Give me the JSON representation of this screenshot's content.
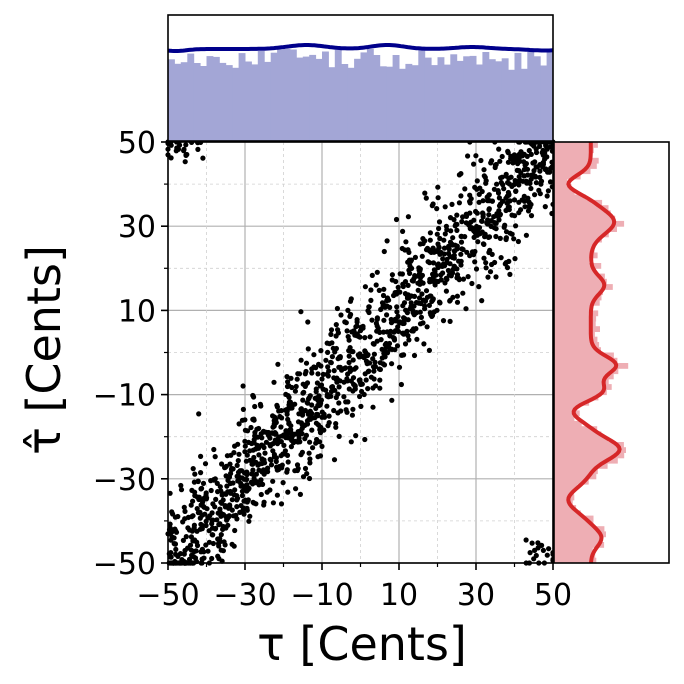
{
  "chart_data": {
    "type": "scatter",
    "title": "",
    "xlabel": "τ [Cents]",
    "ylabel": "τ̂ [Cents]",
    "xlim": [
      -50,
      50
    ],
    "ylim": [
      -50,
      50
    ],
    "x_ticks": [
      -50,
      -30,
      -10,
      10,
      30,
      50
    ],
    "y_ticks": [
      -50,
      -30,
      -10,
      10,
      30,
      50
    ],
    "x_tick_labels": [
      "−50",
      "−30",
      "−10",
      "10",
      "30",
      "50"
    ],
    "y_tick_labels": [
      "−50",
      "−30",
      "−10",
      "10",
      "30",
      "50"
    ],
    "x_minor_ticks": [
      -40,
      -20,
      0,
      20,
      40
    ],
    "y_minor_ticks": [
      -40,
      -20,
      0,
      20,
      40
    ],
    "grid": true,
    "colors": {
      "scatter": "#000000",
      "top_hist_fill": "#a3a6d6",
      "top_kde_line": "#00008b",
      "right_hist_fill": "#eeaeb4",
      "right_kde_line": "#d62728"
    },
    "scatter_clusters": [
      {
        "x_center": -2,
        "y_center": -2,
        "x_spread": 50,
        "y_spread": 7,
        "slope": 1.0,
        "count": 1500
      },
      {
        "x_center": -46,
        "y_center": 49,
        "x_spread": 6,
        "y_spread": 2,
        "slope": 0,
        "count": 25
      },
      {
        "x_center": 47,
        "y_center": -48,
        "x_spread": 4,
        "y_spread": 2,
        "slope": 0,
        "count": 20
      }
    ],
    "marginals": {
      "top": {
        "type": "histogram_with_kde",
        "variable": "τ",
        "kde_peaks": [
          -14,
          7,
          29
        ],
        "kde_dips": [
          -4,
          20
        ]
      },
      "right": {
        "type": "histogram_with_kde",
        "variable": "τ̂",
        "kde_peaks": [
          31,
          16,
          -3,
          -9,
          -23,
          -44
        ],
        "kde_valleys": [
          40,
          23,
          6,
          -14,
          -35,
          -50
        ]
      }
    }
  }
}
